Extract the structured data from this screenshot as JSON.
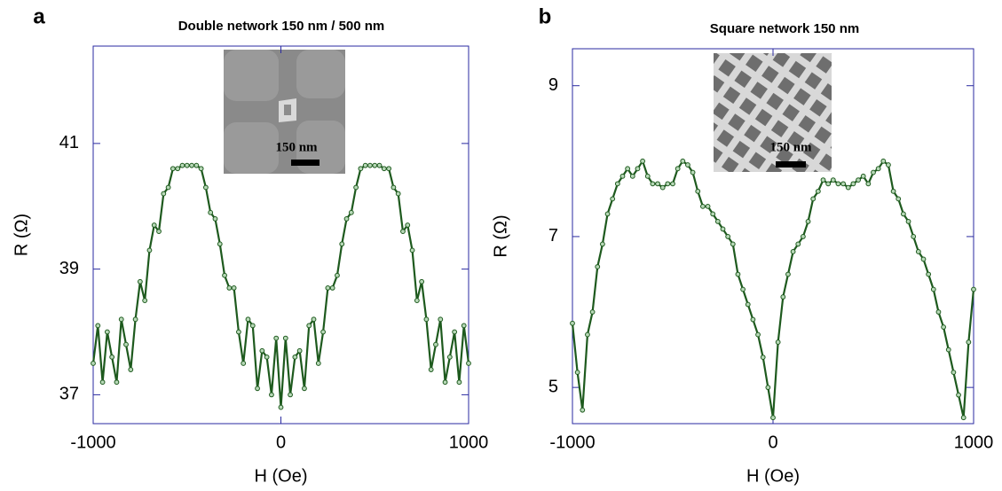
{
  "chart_data": [
    {
      "type": "line",
      "panel_label": "a",
      "title": "Double network 150 nm / 500 nm",
      "inset_label": "150 nm",
      "xlabel": "H (Oe)",
      "ylabel": "R (Ω)",
      "color": "#1e5a1e",
      "x": [
        -1000,
        -975,
        -950,
        -925,
        -900,
        -875,
        -850,
        -825,
        -800,
        -775,
        -750,
        -725,
        -700,
        -675,
        -650,
        -625,
        -600,
        -575,
        -550,
        -525,
        -500,
        -475,
        -450,
        -425,
        -400,
        -375,
        -350,
        -325,
        -300,
        -275,
        -250,
        -225,
        -200,
        -175,
        -150,
        -125,
        -100,
        -75,
        -50,
        -25,
        0,
        25,
        50,
        75,
        100,
        125,
        150,
        175,
        200,
        225,
        250,
        275,
        300,
        325,
        350,
        375,
        400,
        425,
        450,
        475,
        500,
        525,
        550,
        575,
        600,
        625,
        650,
        675,
        700,
        725,
        750,
        775,
        800,
        825,
        850,
        875,
        900,
        925,
        950,
        975,
        1000
      ],
      "values": [
        37.5,
        38.1,
        37.2,
        38.0,
        37.6,
        37.2,
        38.2,
        37.8,
        37.4,
        38.2,
        38.8,
        38.5,
        39.3,
        39.7,
        39.6,
        40.2,
        40.3,
        40.6,
        40.6,
        40.65,
        40.65,
        40.65,
        40.65,
        40.6,
        40.3,
        39.9,
        39.8,
        39.4,
        38.9,
        38.7,
        38.7,
        38.0,
        37.5,
        38.2,
        38.1,
        37.1,
        37.7,
        37.6,
        37.0,
        37.9,
        36.8,
        37.9,
        37.0,
        37.6,
        37.7,
        37.1,
        38.1,
        38.2,
        37.5,
        38.0,
        38.7,
        38.7,
        38.9,
        39.4,
        39.8,
        39.9,
        40.3,
        40.6,
        40.65,
        40.65,
        40.65,
        40.65,
        40.6,
        40.6,
        40.3,
        40.2,
        39.6,
        39.7,
        39.3,
        38.5,
        38.8,
        38.2,
        37.4,
        37.8,
        38.2,
        37.2,
        37.6,
        38.0,
        37.2,
        38.1,
        37.5
      ],
      "xlim": [
        -1000,
        1000
      ],
      "xticks": [
        -1000,
        0,
        1000
      ],
      "ylim": [
        36.54,
        42.55
      ],
      "yticks": [
        37,
        39,
        41
      ]
    },
    {
      "type": "line",
      "panel_label": "b",
      "title": "Square network 150 nm",
      "inset_label": "150 nm",
      "xlabel": "H (Oe)",
      "ylabel": "R (Ω)",
      "color": "#1e5a1e",
      "x": [
        -1000,
        -975,
        -950,
        -925,
        -900,
        -875,
        -850,
        -825,
        -800,
        -775,
        -750,
        -725,
        -700,
        -675,
        -650,
        -625,
        -600,
        -575,
        -550,
        -525,
        -500,
        -475,
        -450,
        -425,
        -400,
        -375,
        -350,
        -325,
        -300,
        -275,
        -250,
        -225,
        -200,
        -175,
        -150,
        -125,
        -100,
        -75,
        -50,
        -25,
        0,
        25,
        50,
        75,
        100,
        125,
        150,
        175,
        200,
        225,
        250,
        275,
        300,
        325,
        350,
        375,
        400,
        425,
        450,
        475,
        500,
        525,
        550,
        575,
        600,
        625,
        650,
        675,
        700,
        725,
        750,
        775,
        800,
        825,
        850,
        875,
        900,
        925,
        950,
        975,
        1000
      ],
      "values": [
        5.85,
        5.2,
        4.7,
        5.7,
        6.0,
        6.6,
        6.9,
        7.3,
        7.5,
        7.7,
        7.8,
        7.9,
        7.8,
        7.9,
        8.0,
        7.8,
        7.7,
        7.7,
        7.65,
        7.7,
        7.7,
        7.9,
        8.0,
        7.95,
        7.85,
        7.6,
        7.4,
        7.4,
        7.3,
        7.2,
        7.1,
        7.0,
        6.9,
        6.5,
        6.3,
        6.1,
        5.9,
        5.7,
        5.4,
        5.0,
        4.6,
        5.6,
        6.2,
        6.5,
        6.8,
        6.9,
        7.0,
        7.2,
        7.5,
        7.6,
        7.75,
        7.7,
        7.75,
        7.7,
        7.7,
        7.65,
        7.7,
        7.75,
        7.8,
        7.7,
        7.85,
        7.9,
        8.0,
        7.95,
        7.6,
        7.5,
        7.3,
        7.2,
        7.0,
        6.8,
        6.7,
        6.5,
        6.3,
        6.0,
        5.8,
        5.5,
        5.2,
        4.9,
        4.6,
        5.6,
        6.3
      ],
      "xlim": [
        -1000,
        1000
      ],
      "xticks": [
        -1000,
        0,
        1000
      ],
      "ylim": [
        4.52,
        9.49
      ],
      "yticks": [
        5,
        7,
        9
      ]
    }
  ]
}
